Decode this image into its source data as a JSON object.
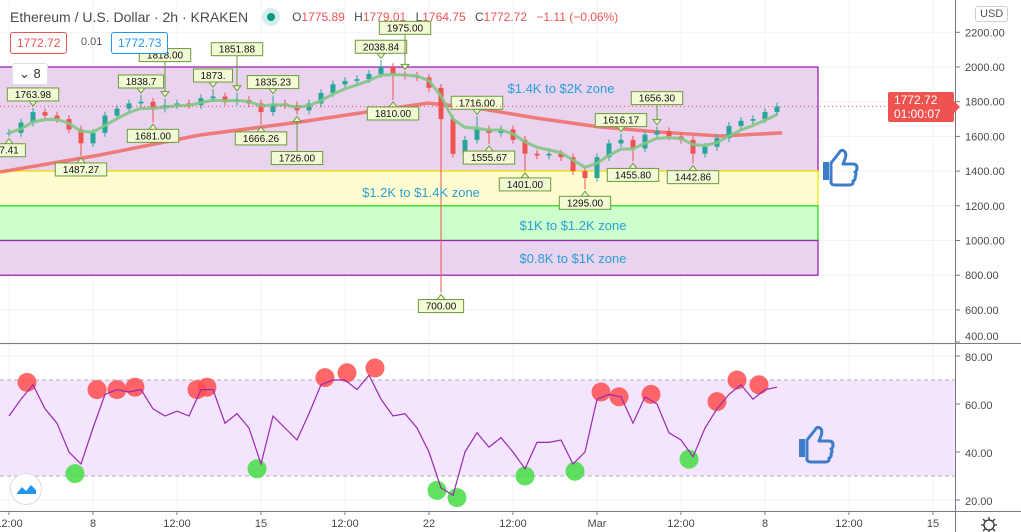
{
  "header": {
    "symbol_title": "Ethereum / U.S. Dollar · 2h · KRAKEN",
    "market_status": "open",
    "ohlc": {
      "o_label": "O",
      "o": "1775.89",
      "h_label": "H",
      "h": "1779.01",
      "l_label": "L",
      "l": "1764.75",
      "c_label": "C",
      "c": "1772.72",
      "change": "−1.11 (−0.06%)"
    },
    "bid": "1772.72",
    "spread": "0.01",
    "ask": "1772.73",
    "indicator_count": "8"
  },
  "price_axis": {
    "currency": "USD",
    "ticks": [
      "2200.00",
      "2000.00",
      "1800.00",
      "1600.00",
      "1400.00",
      "1200.00",
      "1000.00",
      "800.00",
      "600.00",
      "400.00"
    ],
    "tick_values": [
      2200,
      2000,
      1800,
      1600,
      1400,
      1200,
      1000,
      800,
      600,
      400
    ]
  },
  "current_price": {
    "price": "1772.72",
    "countdown": "01:00:07",
    "value": 1772.72
  },
  "rsi_axis": {
    "ticks": [
      "80.00",
      "60.00",
      "40.00",
      "20.00"
    ],
    "tick_values": [
      80,
      60,
      40,
      20
    ],
    "upper_band": 70,
    "lower_band": 30
  },
  "time_axis": [
    {
      "label": "12:00",
      "time": "Feb 4 12:00"
    },
    {
      "label": "8",
      "time": "Feb 8 00:00"
    },
    {
      "label": "12:00",
      "time": "Feb 11 12:00"
    },
    {
      "label": "15",
      "time": "Feb 15 00:00"
    },
    {
      "label": "12:00",
      "time": "Feb 18 12:00"
    },
    {
      "label": "22",
      "time": "Feb 22 00:00"
    },
    {
      "label": "12:00",
      "time": "Feb 25 12:00"
    },
    {
      "label": "Mar",
      "time": "Mar 1 00:00"
    },
    {
      "label": "12:00",
      "time": "Mar 4 12:00"
    },
    {
      "label": "8",
      "time": "Mar 8 00:00"
    },
    {
      "label": "12:00",
      "time": "Mar 11 12:00"
    },
    {
      "label": "15",
      "time": "Mar 15 00:00"
    }
  ],
  "zones": [
    {
      "label": "$1.4K to $2K zone",
      "low": 1400,
      "high": 2000,
      "fill": "#ead3ef",
      "border": "#9c27b0",
      "label_time": "Feb 27 12:00",
      "label_price": 1880
    },
    {
      "label": "$1.2K to $1.4K zone",
      "low": 1200,
      "high": 1400,
      "fill": "#fffdd0",
      "border": "#f2e600",
      "label_time": "Feb 25 00:00",
      "label_price": 1280
    },
    {
      "label": "$1K to $1.2K zone",
      "low": 1000,
      "high": 1200,
      "fill": "#ccffcc",
      "border": "#22dd22",
      "label_time": "Feb 28 00:00",
      "label_price": 1090
    },
    {
      "label": "$0.8K to $1K zone",
      "low": 800,
      "high": 1000,
      "fill": "#ead3ef",
      "border": "#9c27b0",
      "label_time": "Feb 28 00:00",
      "label_price": 900
    }
  ],
  "colors": {
    "up": "#26a69a",
    "down": "#ef5350",
    "fast_ma": "#81c784",
    "slow_ma": "#ef6b64",
    "rsi": "#9c27b0",
    "rsi_band": "#f3e5fd",
    "overbought": "#ff4d4d",
    "oversold": "#44dd44",
    "zone_text": "#2a9fd6",
    "thumb": "#3d7cc9"
  },
  "chart_data": [
    {
      "type": "candlestick",
      "title": "Ethereum / U.S. Dollar · 2h · KRAKEN",
      "ylim": [
        400,
        2300
      ],
      "grid": true,
      "closes": [
        [
          "Feb 4 12:00",
          1620
        ],
        [
          "Feb 5 00:00",
          1680
        ],
        [
          "Feb 5 12:00",
          1740
        ],
        [
          "Feb 6 00:00",
          1720
        ],
        [
          "Feb 6 12:00",
          1700
        ],
        [
          "Feb 7 00:00",
          1640
        ],
        [
          "Feb 7 12:00",
          1560
        ],
        [
          "Feb 8 00:00",
          1620
        ],
        [
          "Feb 8 12:00",
          1720
        ],
        [
          "Feb 9 00:00",
          1760
        ],
        [
          "Feb 9 12:00",
          1790
        ],
        [
          "Feb 10 00:00",
          1800
        ],
        [
          "Feb 10 12:00",
          1760
        ],
        [
          "Feb 11 00:00",
          1780
        ],
        [
          "Feb 11 12:00",
          1790
        ],
        [
          "Feb 12 00:00",
          1780
        ],
        [
          "Feb 12 12:00",
          1820
        ],
        [
          "Feb 13 00:00",
          1830
        ],
        [
          "Feb 13 12:00",
          1800
        ],
        [
          "Feb 14 00:00",
          1810
        ],
        [
          "Feb 14 12:00",
          1790
        ],
        [
          "Feb 15 00:00",
          1740
        ],
        [
          "Feb 15 12:00",
          1790
        ],
        [
          "Feb 16 00:00",
          1780
        ],
        [
          "Feb 16 12:00",
          1750
        ],
        [
          "Feb 17 00:00",
          1790
        ],
        [
          "Feb 17 12:00",
          1850
        ],
        [
          "Feb 18 00:00",
          1900
        ],
        [
          "Feb 18 12:00",
          1920
        ],
        [
          "Feb 19 00:00",
          1930
        ],
        [
          "Feb 19 12:00",
          1960
        ],
        [
          "Feb 20 00:00",
          2000
        ],
        [
          "Feb 20 12:00",
          1960
        ],
        [
          "Feb 21 00:00",
          1950
        ],
        [
          "Feb 21 12:00",
          1940
        ],
        [
          "Feb 22 00:00",
          1880
        ],
        [
          "Feb 22 12:00",
          1700
        ],
        [
          "Feb 23 00:00",
          1500
        ],
        [
          "Feb 23 12:00",
          1580
        ],
        [
          "Feb 24 00:00",
          1640
        ],
        [
          "Feb 24 12:00",
          1620
        ],
        [
          "Feb 25 00:00",
          1640
        ],
        [
          "Feb 25 12:00",
          1580
        ],
        [
          "Feb 26 00:00",
          1500
        ],
        [
          "Feb 26 12:00",
          1490
        ],
        [
          "Feb 27 00:00",
          1500
        ],
        [
          "Feb 27 12:00",
          1480
        ],
        [
          "Feb 28 00:00",
          1400
        ],
        [
          "Feb 28 12:00",
          1360
        ],
        [
          "Mar 1 00:00",
          1480
        ],
        [
          "Mar 1 12:00",
          1560
        ],
        [
          "Mar 2 00:00",
          1580
        ],
        [
          "Mar 2 12:00",
          1530
        ],
        [
          "Mar 3 00:00",
          1610
        ],
        [
          "Mar 3 12:00",
          1630
        ],
        [
          "Mar 4 00:00",
          1600
        ],
        [
          "Mar 4 12:00",
          1580
        ],
        [
          "Mar 5 00:00",
          1500
        ],
        [
          "Mar 5 12:00",
          1540
        ],
        [
          "Mar 6 00:00",
          1590
        ],
        [
          "Mar 6 12:00",
          1660
        ],
        [
          "Mar 7 00:00",
          1690
        ],
        [
          "Mar 7 12:00",
          1700
        ],
        [
          "Mar 8 00:00",
          1740
        ],
        [
          "Mar 8 12:00",
          1772.72
        ]
      ],
      "extreme_labels": [
        {
          "text": "7.41",
          "time": "Feb 4 12:00",
          "kind": "low"
        },
        {
          "text": "1763.98",
          "time": "Feb 5 12:00",
          "kind": "high"
        },
        {
          "text": "1487.27",
          "time": "Feb 7 12:00",
          "kind": "low"
        },
        {
          "text": "1838.7",
          "time": "Feb 10 00:00",
          "kind": "high"
        },
        {
          "text": "1681.00",
          "time": "Feb 10 12:00",
          "kind": "low"
        },
        {
          "text": "1818.00",
          "time": "Feb 11 00:00",
          "kind": "high"
        },
        {
          "text": "1873.",
          "time": "Feb 13 00:00",
          "kind": "high"
        },
        {
          "text": "1851.88",
          "time": "Feb 14 00:00",
          "kind": "high"
        },
        {
          "text": "1666.26",
          "time": "Feb 15 00:00",
          "kind": "low"
        },
        {
          "text": "1835.23",
          "time": "Feb 15 12:00",
          "kind": "high"
        },
        {
          "text": "1726.00",
          "time": "Feb 16 12:00",
          "kind": "low"
        },
        {
          "text": "2038.84",
          "time": "Feb 20 00:00",
          "kind": "high"
        },
        {
          "text": "1810.00",
          "time": "Feb 20 12:00",
          "kind": "low"
        },
        {
          "text": "1975.00",
          "time": "Feb 21 00:00",
          "kind": "high"
        },
        {
          "text": "700.00",
          "time": "Feb 22 12:00",
          "kind": "low"
        },
        {
          "text": "1716.00",
          "time": "Feb 24 00:00",
          "kind": "high"
        },
        {
          "text": "1555.67",
          "time": "Feb 24 12:00",
          "kind": "low"
        },
        {
          "text": "1401.00",
          "time": "Feb 26 00:00",
          "kind": "low"
        },
        {
          "text": "1295.00",
          "time": "Feb 28 12:00",
          "kind": "low"
        },
        {
          "text": "1616.17",
          "time": "Mar 2 00:00",
          "kind": "high"
        },
        {
          "text": "1455.80",
          "time": "Mar 2 12:00",
          "kind": "low"
        },
        {
          "text": "1656.30",
          "time": "Mar 3 12:00",
          "kind": "high"
        },
        {
          "text": "1442.86",
          "time": "Mar 5 00:00",
          "kind": "low"
        }
      ],
      "slow_ma": [
        [
          "Feb 4 03:00",
          1395
        ],
        [
          "Feb 8 07:00",
          1493
        ],
        [
          "Feb 12 11:00",
          1608
        ],
        [
          "Feb 16 15:00",
          1683
        ],
        [
          "Feb 19 23:00",
          1752
        ],
        [
          "Feb 21 23:00",
          1792
        ],
        [
          "Feb 23 23:00",
          1764
        ],
        [
          "Feb 26 11:00",
          1706
        ],
        [
          "Mar 1 03:00",
          1654
        ],
        [
          "Mar 3 15:00",
          1625
        ],
        [
          "Mar 6 03:00",
          1602
        ],
        [
          "Mar 8 17:00",
          1620
        ]
      ]
    },
    {
      "type": "line",
      "ylim": [
        15,
        82
      ],
      "grid": true,
      "rsi": [
        [
          "Feb 4 12:00",
          55
        ],
        [
          "Feb 5 00:00",
          62
        ],
        [
          "Feb 5 12:00",
          68
        ],
        [
          "Feb 6 00:00",
          58
        ],
        [
          "Feb 6 12:00",
          52
        ],
        [
          "Feb 7 00:00",
          40
        ],
        [
          "Feb 7 12:00",
          35
        ],
        [
          "Feb 8 00:00",
          50
        ],
        [
          "Feb 8 12:00",
          64
        ],
        [
          "Feb 9 00:00",
          66
        ],
        [
          "Feb 9 12:00",
          65
        ],
        [
          "Feb 10 00:00",
          66
        ],
        [
          "Feb 10 12:00",
          58
        ],
        [
          "Feb 11 00:00",
          55
        ],
        [
          "Feb 11 12:00",
          57
        ],
        [
          "Feb 12 00:00",
          55
        ],
        [
          "Feb 12 12:00",
          66
        ],
        [
          "Feb 13 00:00",
          66
        ],
        [
          "Feb 13 12:00",
          52
        ],
        [
          "Feb 14 00:00",
          56
        ],
        [
          "Feb 14 12:00",
          50
        ],
        [
          "Feb 15 00:00",
          35
        ],
        [
          "Feb 15 12:00",
          55
        ],
        [
          "Feb 16 00:00",
          50
        ],
        [
          "Feb 16 12:00",
          45
        ],
        [
          "Feb 17 00:00",
          56
        ],
        [
          "Feb 17 12:00",
          68
        ],
        [
          "Feb 18 00:00",
          70
        ],
        [
          "Feb 18 12:00",
          70
        ],
        [
          "Feb 19 00:00",
          66
        ],
        [
          "Feb 19 12:00",
          72
        ],
        [
          "Feb 20 00:00",
          62
        ],
        [
          "Feb 20 12:00",
          55
        ],
        [
          "Feb 21 00:00",
          56
        ],
        [
          "Feb 21 12:00",
          50
        ],
        [
          "Feb 22 00:00",
          40
        ],
        [
          "Feb 22 12:00",
          25
        ],
        [
          "Feb 23 00:00",
          22
        ],
        [
          "Feb 23 12:00",
          40
        ],
        [
          "Feb 24 00:00",
          48
        ],
        [
          "Feb 24 12:00",
          42
        ],
        [
          "Feb 25 00:00",
          46
        ],
        [
          "Feb 25 12:00",
          40
        ],
        [
          "Feb 26 00:00",
          33
        ],
        [
          "Feb 26 12:00",
          44
        ],
        [
          "Feb 27 00:00",
          44
        ],
        [
          "Feb 27 12:00",
          45
        ],
        [
          "Feb 28 00:00",
          35
        ],
        [
          "Feb 28 12:00",
          40
        ],
        [
          "Mar 1 00:00",
          62
        ],
        [
          "Mar 1 12:00",
          64
        ],
        [
          "Mar 2 00:00",
          63
        ],
        [
          "Mar 2 12:00",
          52
        ],
        [
          "Mar 3 00:00",
          63
        ],
        [
          "Mar 3 12:00",
          60
        ],
        [
          "Mar 4 00:00",
          48
        ],
        [
          "Mar 4 12:00",
          45
        ],
        [
          "Mar 5 00:00",
          38
        ],
        [
          "Mar 5 12:00",
          50
        ],
        [
          "Mar 6 00:00",
          58
        ],
        [
          "Mar 6 12:00",
          64
        ],
        [
          "Mar 7 00:00",
          68
        ],
        [
          "Mar 7 12:00",
          62
        ],
        [
          "Mar 8 00:00",
          66
        ],
        [
          "Mar 8 12:00",
          67
        ]
      ],
      "overbought_markers": [
        [
          "Feb 5 06:00",
          69
        ],
        [
          "Feb 8 04:00",
          66
        ],
        [
          "Feb 9 00:00",
          66
        ],
        [
          "Feb 9 18:00",
          67
        ],
        [
          "Feb 12 08:00",
          66
        ],
        [
          "Feb 12 18:00",
          67
        ],
        [
          "Feb 17 16:00",
          71
        ],
        [
          "Feb 18 14:00",
          73
        ],
        [
          "Feb 19 18:00",
          75
        ],
        [
          "Mar 1 04:00",
          65
        ],
        [
          "Mar 1 22:00",
          63
        ],
        [
          "Mar 3 06:00",
          64
        ],
        [
          "Mar 6 00:00",
          61
        ],
        [
          "Mar 6 20:00",
          70
        ],
        [
          "Mar 7 18:00",
          68
        ]
      ],
      "oversold_markers": [
        [
          "Feb 7 06:00",
          31
        ],
        [
          "Feb 14 20:00",
          33
        ],
        [
          "Feb 22 08:00",
          24
        ],
        [
          "Feb 23 04:00",
          21
        ],
        [
          "Feb 26 00:00",
          30
        ],
        [
          "Feb 28 02:00",
          32
        ],
        [
          "Mar 4 20:00",
          37
        ]
      ]
    }
  ]
}
